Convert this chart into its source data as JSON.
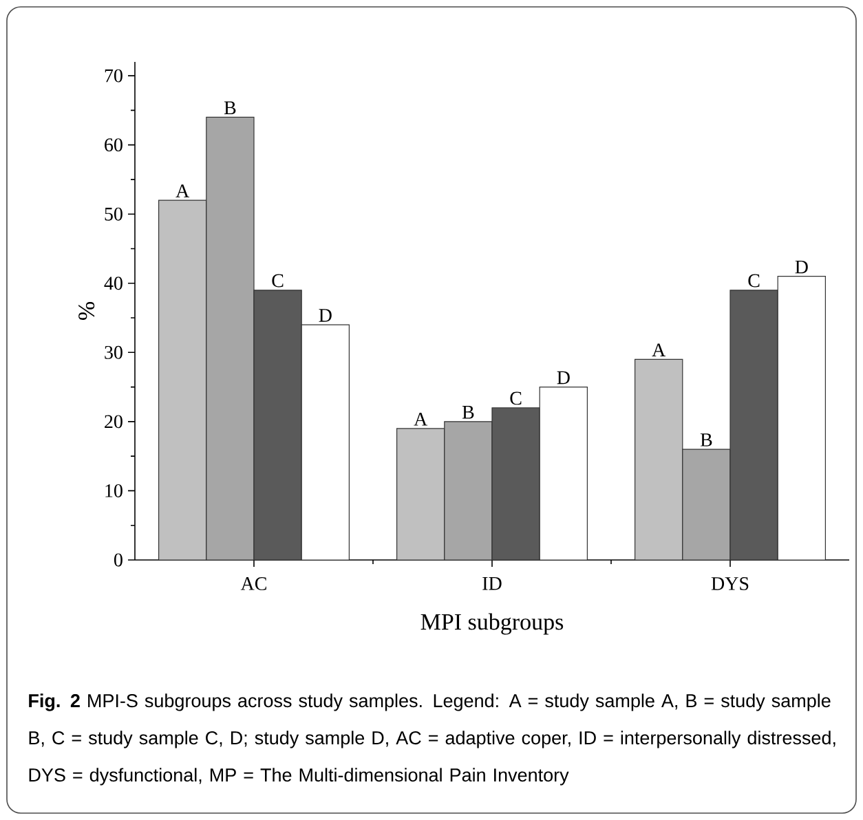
{
  "chart_data": {
    "type": "bar",
    "xlabel": "MPI subgroups",
    "ylabel": "%",
    "categories": [
      "AC",
      "ID",
      "DYS"
    ],
    "series": [
      {
        "name": "A",
        "color": "#c0c0c0",
        "values": [
          52,
          19,
          29
        ]
      },
      {
        "name": "B",
        "color": "#a6a6a6",
        "values": [
          64,
          20,
          16
        ]
      },
      {
        "name": "C",
        "color": "#5a5a5a",
        "values": [
          39,
          22,
          39
        ]
      },
      {
        "name": "D",
        "color": "#ffffff",
        "values": [
          34,
          25,
          41
        ]
      }
    ],
    "ylim": [
      0,
      72
    ],
    "yticks": [
      0,
      10,
      20,
      30,
      40,
      50,
      60,
      70
    ],
    "grid": false,
    "annotations": [
      "**Fig. 2** MPI-S subgroups across study samples. Legend: A = study sample A, B = study sample B, C = study sample C, D; study sample D, AC = adaptive coper, ID = interpersonally distressed, DYS = dysfunctional, MP = The Multi-dimensional Pain Inventory"
    ]
  }
}
